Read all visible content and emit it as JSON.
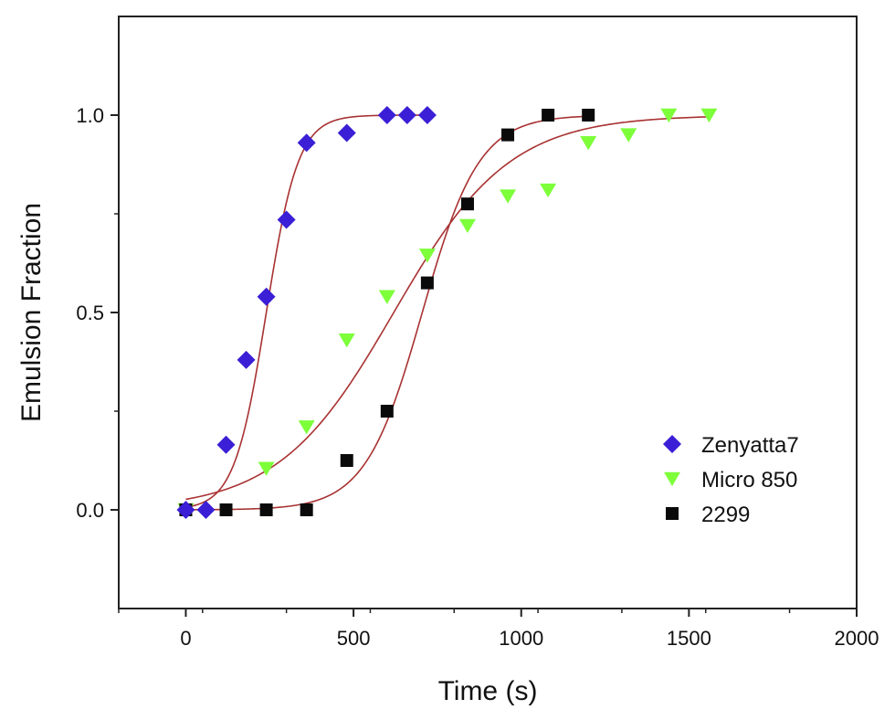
{
  "chart_data": {
    "type": "scatter",
    "title": "",
    "xlabel": "Time (s)",
    "ylabel": "Emulsion Fraction",
    "xlim": [
      -200,
      2000
    ],
    "ylim": [
      -0.25,
      1.25
    ],
    "xticks": [
      0,
      500,
      1000,
      1500,
      2000
    ],
    "xtick_labels": [
      "0",
      "500",
      "1000",
      "1500",
      "2000"
    ],
    "yticks": [
      0.0,
      0.5,
      1.0
    ],
    "ytick_labels": [
      "0.0",
      "0.5",
      "1.0"
    ],
    "grid": false,
    "legend": "center-right",
    "fit_color": "#a83232",
    "series": [
      {
        "name": "Zenyatta7",
        "marker": "diamond",
        "color": "#3a1fd6",
        "x": [
          0,
          60,
          120,
          180,
          240,
          300,
          360,
          480,
          600,
          660,
          720
        ],
        "y": [
          0.0,
          0.0,
          0.165,
          0.38,
          0.54,
          0.735,
          0.93,
          0.955,
          1.0,
          1.0,
          1.0
        ],
        "fit": {
          "model": "logistic",
          "x0": 240,
          "k": 0.021,
          "xmin": 0,
          "xmax": 720
        }
      },
      {
        "name": "Micro 850",
        "marker": "triangle-down",
        "color": "#7dff3a",
        "x": [
          0,
          240,
          360,
          480,
          600,
          720,
          840,
          960,
          1080,
          1200,
          1320,
          1440,
          1560
        ],
        "y": [
          0.0,
          0.105,
          0.21,
          0.43,
          0.54,
          0.645,
          0.72,
          0.795,
          0.81,
          0.93,
          0.95,
          1.0,
          1.0
        ],
        "fit": {
          "model": "logistic",
          "x0": 620,
          "k": 0.0058,
          "xmin": 0,
          "xmax": 1560
        }
      },
      {
        "name": "2299",
        "marker": "square",
        "color": "#0a0a0a",
        "x": [
          0,
          120,
          240,
          360,
          480,
          600,
          720,
          840,
          960,
          1080,
          1200
        ],
        "y": [
          0.0,
          0.0,
          0.0,
          0.0,
          0.125,
          0.25,
          0.575,
          0.775,
          0.95,
          1.0,
          1.0
        ],
        "fit": {
          "model": "logistic",
          "x0": 705,
          "k": 0.0118,
          "xmin": 0,
          "xmax": 1200
        }
      }
    ]
  }
}
